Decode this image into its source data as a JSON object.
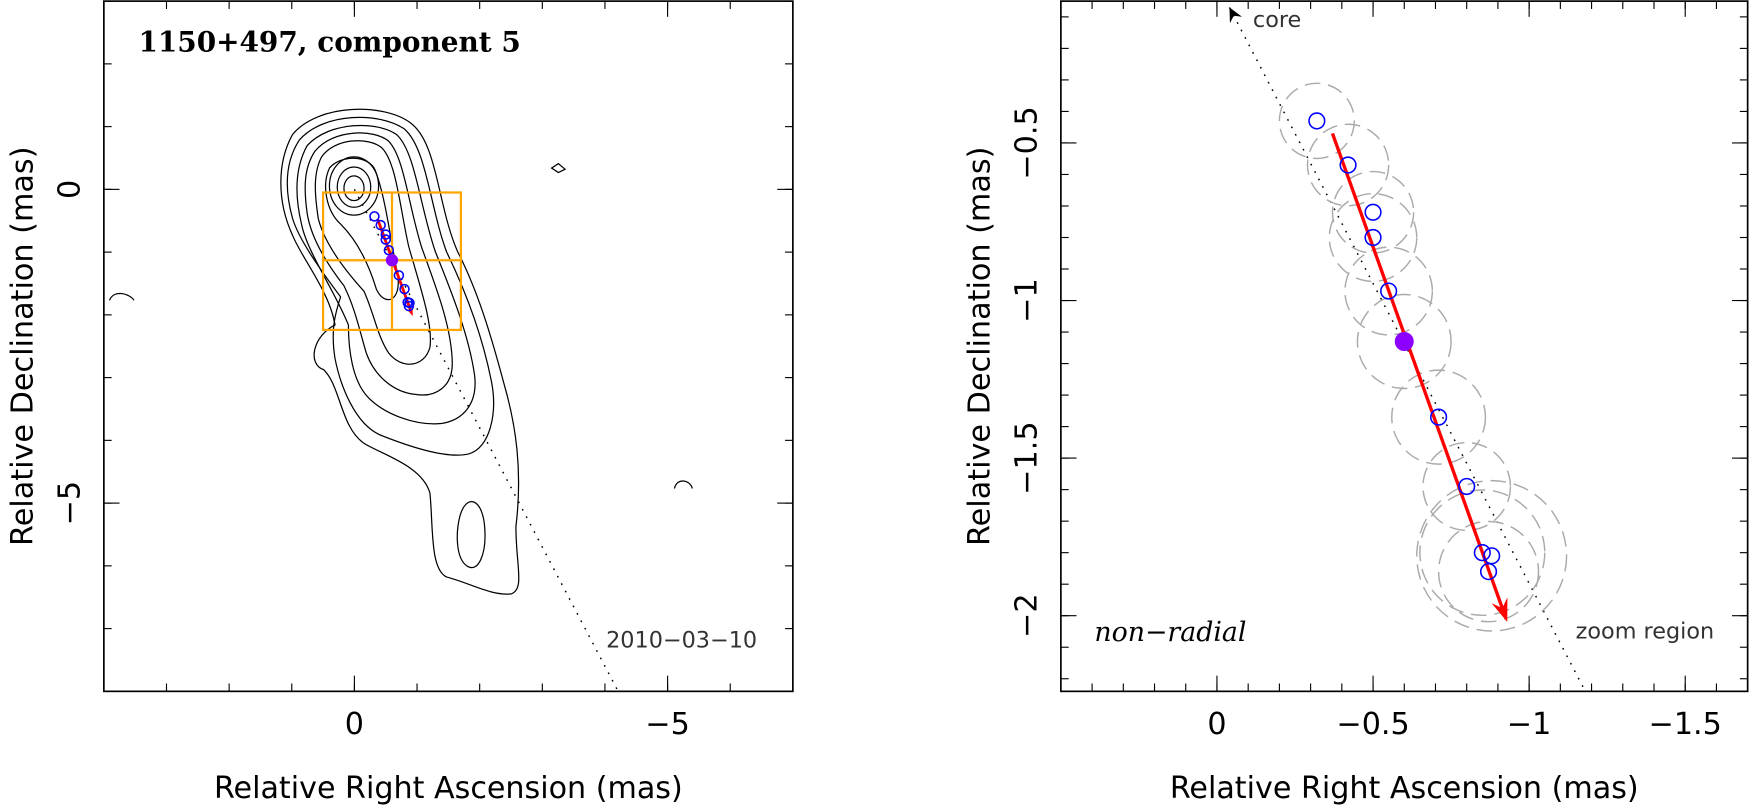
{
  "chart_data": [
    {
      "type": "scatter",
      "title": "1150+497, component 5",
      "xlabel": "Relative Right Ascension (mas)",
      "ylabel": "Relative Declination (mas)",
      "xlim": [
        4,
        -7
      ],
      "ylim": [
        -8,
        3
      ],
      "xticks": [
        0,
        {
          "value": -5,
          "label": "−5"
        }
      ],
      "yticks": [
        0,
        {
          "value": -5,
          "label": "−5"
        }
      ],
      "minor_step_x": 1,
      "minor_step_y": 1,
      "points": {
        "color": "#0000ff",
        "x": [
          -0.32,
          -0.42,
          -0.5,
          -0.5,
          -0.55,
          -0.71,
          -0.8,
          -0.85,
          -0.88,
          -0.87
        ],
        "y": [
          -0.43,
          -0.57,
          -0.72,
          -0.8,
          -0.97,
          -1.37,
          -1.59,
          -1.8,
          -1.81,
          -1.86
        ]
      },
      "reference_point": {
        "color": "#8b00ff",
        "x": -0.6,
        "y": -1.13
      },
      "arrow": {
        "color": "#ff0000",
        "x": [
          -0.37,
          -0.93
        ],
        "y": [
          -0.47,
          -2.02
        ]
      },
      "radial_line": {
        "x": [
          0,
          -4.21
        ],
        "y": [
          0,
          -8
        ]
      },
      "zoom_region": {
        "color": "#ffa500",
        "x": [
          0.5,
          -1.7
        ],
        "y": [
          -0.05,
          -2.24
        ]
      },
      "annotations": [
        "2010−03−10"
      ]
    },
    {
      "type": "scatter",
      "xlabel": "Relative Right Ascension (mas)",
      "ylabel": "Relative Declination (mas)",
      "xlim": [
        0.5,
        -1.7
      ],
      "ylim": [
        -2.24,
        -0.05
      ],
      "xticks": [
        0,
        {
          "value": -0.5,
          "label": "−0.5"
        },
        {
          "value": -1,
          "label": "−1"
        },
        {
          "value": -1.5,
          "label": "−1.5"
        }
      ],
      "yticks": [
        {
          "value": -0.5,
          "label": "−0.5"
        },
        {
          "value": -1,
          "label": "−1"
        },
        {
          "value": -1.5,
          "label": "−1.5"
        },
        {
          "value": -2,
          "label": "−2"
        }
      ],
      "minor_step_x": 0.1,
      "minor_step_y": 0.1,
      "points": {
        "color": "#0000ff",
        "x": [
          -0.32,
          -0.42,
          -0.5,
          -0.5,
          -0.55,
          -0.71,
          -0.8,
          -0.85,
          -0.88,
          -0.87
        ],
        "y": [
          -0.43,
          -0.57,
          -0.72,
          -0.8,
          -0.97,
          -1.37,
          -1.59,
          -1.8,
          -1.81,
          -1.86
        ],
        "sizes": [
          0.12,
          0.13,
          0.13,
          0.14,
          0.14,
          0.15,
          0.14,
          0.2,
          0.24,
          0.16
        ]
      },
      "reference_point": {
        "color": "#8b00ff",
        "x": -0.6,
        "y": -1.13,
        "size": 0.15
      },
      "arrow": {
        "color": "#ff0000",
        "x": [
          -0.37,
          -0.93
        ],
        "y": [
          -0.47,
          -2.02
        ]
      },
      "radial_line": {
        "x": [
          -0.04,
          -1.18
        ],
        "y": [
          -0.07,
          -2.24
        ]
      },
      "annotations": [
        "core",
        "zoom region",
        "non−radial"
      ]
    }
  ]
}
